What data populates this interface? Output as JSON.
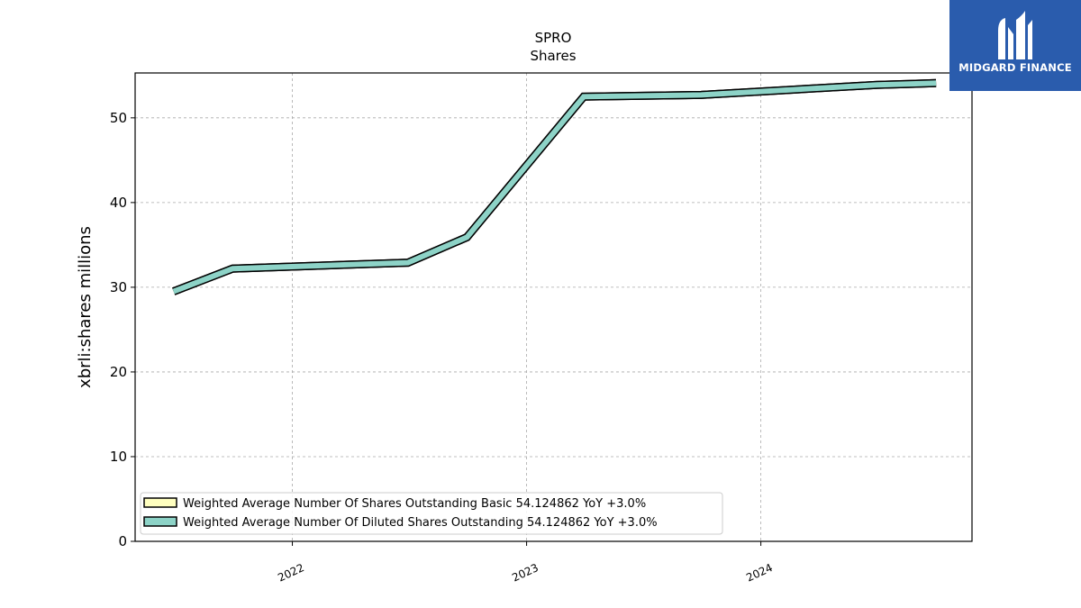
{
  "chart_data": {
    "type": "line",
    "title": "SPRO",
    "subtitle": "Shares",
    "xlabel": "",
    "ylabel": "xbrli:shares millions",
    "xlim": [
      "2021-05-01",
      "2024-11-25"
    ],
    "ylim": [
      0,
      55.3
    ],
    "yticks": [
      0,
      10,
      20,
      30,
      40,
      50
    ],
    "ytick_labels": [
      "0",
      "10",
      "20",
      "30",
      "40",
      "50"
    ],
    "xticks": [
      "2022-01-01",
      "2023-01-01",
      "2024-01-01"
    ],
    "xtick_labels": [
      "2022",
      "2023",
      "2024"
    ],
    "grid": true,
    "legend_position": "lower-left",
    "x": [
      "2021-06-30",
      "2021-09-30",
      "2022-06-30",
      "2022-09-30",
      "2023-03-31",
      "2023-09-30",
      "2024-06-30",
      "2024-09-30"
    ],
    "series": [
      {
        "name": "Weighted Average Number Of Shares Outstanding Basic  54.124862 YoY +3.0%",
        "color": "#ffffbf",
        "values": [
          29.5,
          32.2,
          32.9,
          35.9,
          52.5,
          52.7,
          53.9,
          54.1
        ]
      },
      {
        "name": "Weighted Average Number Of Diluted Shares Outstanding  54.124862 YoY +3.0%",
        "color": "#8dd3c7",
        "values": [
          29.5,
          32.2,
          32.9,
          35.9,
          52.5,
          52.7,
          53.9,
          54.1
        ]
      }
    ]
  },
  "logo": {
    "text": "MIDGARD FINANCE",
    "background": "#2a5cad"
  }
}
